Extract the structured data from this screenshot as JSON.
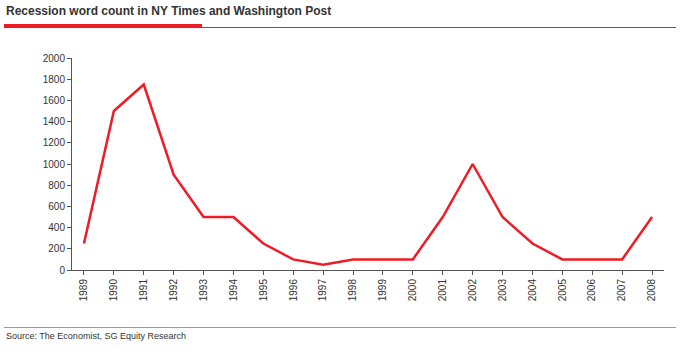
{
  "chart_data": {
    "type": "line",
    "title": "Recession word count in NY Times and Washington Post",
    "source": "Source: The Economist, SG Equity Research",
    "categories": [
      "1989",
      "1990",
      "1991",
      "1992",
      "1993",
      "1994",
      "1995",
      "1996",
      "1997",
      "1998",
      "1999",
      "2000",
      "2001",
      "2002",
      "2003",
      "2004",
      "2005",
      "2006",
      "2007",
      "2008"
    ],
    "values": [
      250,
      1500,
      1750,
      900,
      500,
      500,
      250,
      100,
      50,
      100,
      100,
      100,
      500,
      1000,
      500,
      250,
      100,
      100,
      100,
      500
    ],
    "color": "#ee1c25",
    "ylim": [
      0,
      2000
    ],
    "yticks": [
      0,
      200,
      400,
      600,
      800,
      1000,
      1200,
      1400,
      1600,
      1800,
      2000
    ],
    "grid": false
  }
}
